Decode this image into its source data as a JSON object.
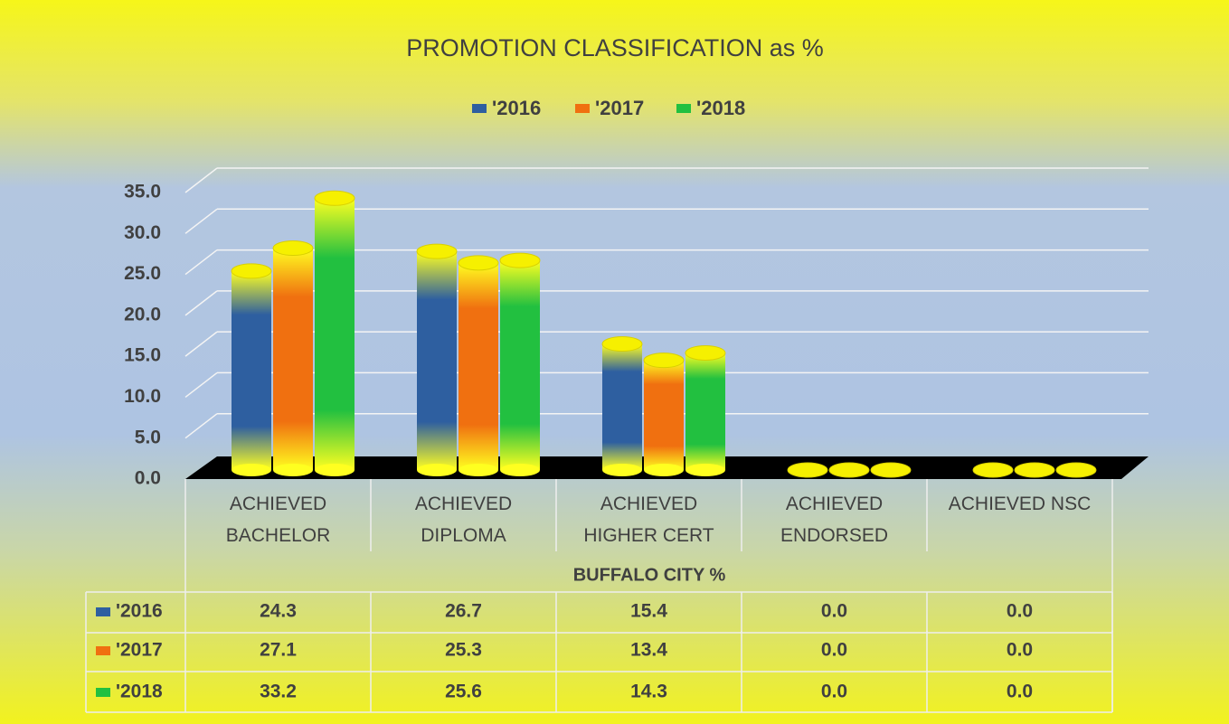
{
  "chart_data": {
    "type": "bar",
    "title": "PROMOTION CLASSIFICATION as %",
    "x_label": "BUFFALO CITY %",
    "categories": [
      "ACHIEVED BACHELOR",
      "ACHIEVED DIPLOMA",
      "ACHIEVED HIGHER CERT",
      "ACHIEVED ENDORSED",
      "ACHIEVED NSC"
    ],
    "series": [
      {
        "name": "'2016",
        "color": "#2e5fa0",
        "values": [
          24.3,
          26.7,
          15.4,
          0,
          0
        ],
        "value_labels": [
          "24.3",
          "26.7",
          "15.4",
          "0.0",
          "0.0"
        ]
      },
      {
        "name": "'2017",
        "color": "#f07010",
        "values": [
          27.1,
          25.3,
          13.4,
          0,
          0
        ],
        "value_labels": [
          "27.1",
          "25.3",
          "13.4",
          "0.0",
          "0.0"
        ]
      },
      {
        "name": "'2018",
        "color": "#22c040",
        "values": [
          33.2,
          25.6,
          14.3,
          0,
          0
        ],
        "value_labels": [
          "33.2",
          "25.6",
          "14.3",
          "0.0",
          "0.0"
        ]
      }
    ],
    "ylim": [
      0,
      35
    ],
    "yticks": [
      {
        "value": 0,
        "label": "0.0"
      },
      {
        "value": 5,
        "label": "5.0"
      },
      {
        "value": 10,
        "label": "10.0"
      },
      {
        "value": 15,
        "label": "15.0"
      },
      {
        "value": 20,
        "label": "20.0"
      },
      {
        "value": 25,
        "label": "25.0"
      },
      {
        "value": 30,
        "label": "30.0"
      },
      {
        "value": 35,
        "label": "35.0"
      }
    ],
    "grid": true,
    "legend": "top"
  }
}
